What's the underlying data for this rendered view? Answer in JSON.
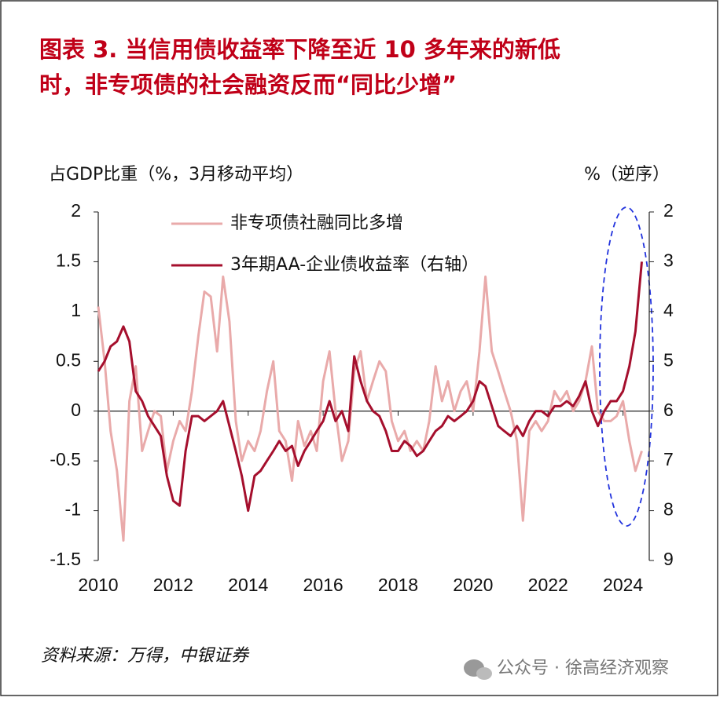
{
  "chart_data": {
    "type": "line",
    "title": [
      "图表 3. 当信用债收益率下降至近 10 多年来的新低",
      "时，非专项债的社会融资反而“同比少增”"
    ],
    "y_label": "占GDP比重（%，3月移动平均）",
    "y2_label": "%（逆序）",
    "source": "资料来源：万得，中银证券",
    "watermark": "公众号 · 徐高经济观察",
    "x": [
      2010.0,
      2010.17,
      2010.33,
      2010.5,
      2010.67,
      2010.83,
      2011.0,
      2011.17,
      2011.33,
      2011.5,
      2011.67,
      2011.83,
      2012.0,
      2012.17,
      2012.33,
      2012.5,
      2012.67,
      2012.83,
      2013.0,
      2013.17,
      2013.33,
      2013.5,
      2013.67,
      2013.83,
      2014.0,
      2014.17,
      2014.33,
      2014.5,
      2014.67,
      2014.83,
      2015.0,
      2015.17,
      2015.33,
      2015.5,
      2015.67,
      2015.83,
      2016.0,
      2016.17,
      2016.33,
      2016.5,
      2016.67,
      2016.83,
      2017.0,
      2017.17,
      2017.33,
      2017.5,
      2017.67,
      2017.83,
      2018.0,
      2018.17,
      2018.33,
      2018.5,
      2018.67,
      2018.83,
      2019.0,
      2019.17,
      2019.33,
      2019.5,
      2019.67,
      2019.83,
      2020.0,
      2020.17,
      2020.33,
      2020.5,
      2020.67,
      2020.83,
      2021.0,
      2021.17,
      2021.33,
      2021.5,
      2021.67,
      2021.83,
      2022.0,
      2022.17,
      2022.33,
      2022.5,
      2022.67,
      2022.83,
      2023.0,
      2023.17,
      2023.33,
      2023.5,
      2023.67,
      2023.83,
      2024.0,
      2024.17,
      2024.33,
      2024.5
    ],
    "series": [
      {
        "name": "非专项债社融同比多增",
        "color": "#e9aaaa",
        "axis": "y",
        "values": [
          1.05,
          0.5,
          -0.2,
          -0.6,
          -1.3,
          0.1,
          0.45,
          -0.4,
          -0.2,
          0.0,
          -0.05,
          -0.6,
          -0.3,
          -0.1,
          -0.2,
          0.2,
          0.75,
          1.2,
          1.15,
          0.6,
          1.35,
          0.9,
          -0.1,
          -0.5,
          -0.3,
          -0.4,
          -0.2,
          0.2,
          0.5,
          -0.2,
          -0.3,
          -0.7,
          -0.1,
          -0.35,
          -0.2,
          -0.4,
          0.3,
          0.6,
          0.0,
          -0.5,
          -0.3,
          0.4,
          0.6,
          0.1,
          0.3,
          0.5,
          0.4,
          -0.1,
          -0.3,
          -0.2,
          -0.4,
          -0.3,
          -0.4,
          -0.1,
          0.45,
          0.1,
          0.3,
          0.0,
          0.2,
          0.3,
          0.0,
          0.6,
          1.35,
          0.6,
          0.4,
          0.2,
          0.0,
          -0.3,
          -1.1,
          -0.2,
          -0.1,
          -0.2,
          -0.1,
          0.2,
          0.1,
          0.2,
          0.0,
          0.1,
          0.3,
          0.65,
          0.0,
          -0.1,
          -0.1,
          -0.05,
          0.1,
          -0.3,
          -0.6,
          -0.4
        ]
      },
      {
        "name": "3年期AA-企业债收益率（右轴）",
        "color": "#a50f2d",
        "axis": "y2",
        "values": [
          5.2,
          5.0,
          4.7,
          4.6,
          4.3,
          4.6,
          5.6,
          5.8,
          6.1,
          6.3,
          6.5,
          7.3,
          7.8,
          7.9,
          6.8,
          6.1,
          6.1,
          6.2,
          6.1,
          6.0,
          5.8,
          6.3,
          6.8,
          7.3,
          8.0,
          7.3,
          7.2,
          7.0,
          6.8,
          6.6,
          6.8,
          6.7,
          7.1,
          6.8,
          6.6,
          6.4,
          6.2,
          5.8,
          6.2,
          6.0,
          6.4,
          4.9,
          5.4,
          5.8,
          6.0,
          6.1,
          6.4,
          6.8,
          6.8,
          6.6,
          6.7,
          6.9,
          6.8,
          6.6,
          6.4,
          6.3,
          6.1,
          6.2,
          6.1,
          6.0,
          5.8,
          5.4,
          5.5,
          5.9,
          6.3,
          6.4,
          6.5,
          6.3,
          6.5,
          6.2,
          6.0,
          6.0,
          6.1,
          5.9,
          5.9,
          5.8,
          5.9,
          5.7,
          5.4,
          6.0,
          6.3,
          6.0,
          5.8,
          5.8,
          5.6,
          5.1,
          4.4,
          3.0
        ]
      }
    ],
    "xlim": [
      2010,
      2024.7
    ],
    "xticks": [
      2010,
      2012,
      2014,
      2016,
      2018,
      2020,
      2022,
      2024
    ],
    "ylim": [
      -1.5,
      2
    ],
    "yticks": [
      -1.5,
      -1,
      -0.5,
      0,
      0.5,
      1,
      1.5,
      2
    ],
    "y2lim": [
      2,
      9
    ],
    "y2ticks": [
      2,
      3,
      4,
      5,
      6,
      7,
      8,
      9
    ],
    "y2_inverted": true,
    "grid": false
  }
}
